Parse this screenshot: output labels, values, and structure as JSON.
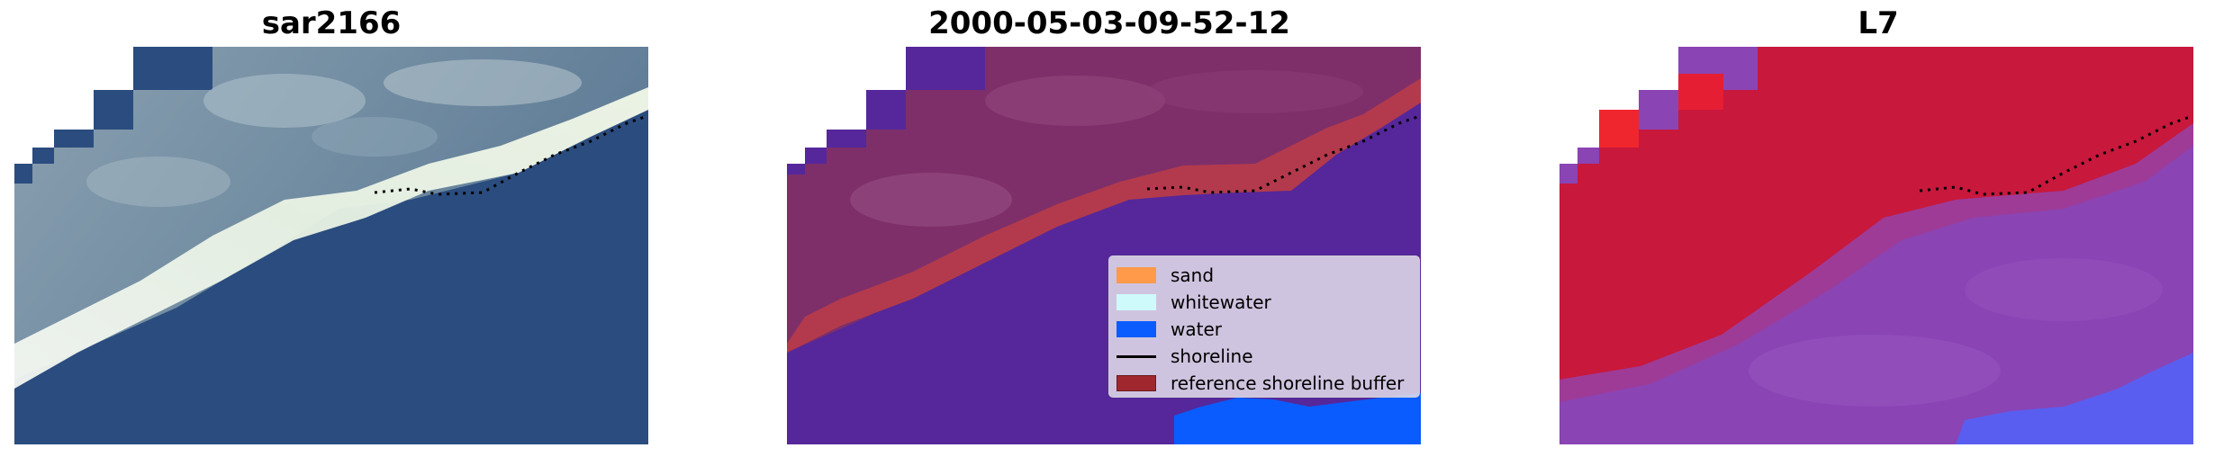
{
  "panels": [
    {
      "title": "sar2166",
      "image": "satellite RGB coastline"
    },
    {
      "title": "2000-05-03-09-52-12",
      "image": "classified overlay"
    },
    {
      "title": "L7",
      "image": "false-color index"
    }
  ],
  "legend": {
    "items": [
      {
        "label": "sand",
        "kind": "patch",
        "color": "#ff9a4a"
      },
      {
        "label": "whitewater",
        "kind": "patch",
        "color": "#cffafc"
      },
      {
        "label": "water",
        "kind": "patch",
        "color": "#0a5cff"
      },
      {
        "label": "shoreline",
        "kind": "line",
        "color": "#000000"
      },
      {
        "label": "reference shoreline buffer",
        "kind": "patch",
        "color": "#a0272e"
      }
    ]
  },
  "colors": {
    "ocean_blue": "#2b4c7e",
    "cloud_white": "#c9d6d4",
    "land_maroon": "#7e2f6a",
    "buffer_red": "#b33a4c",
    "sea_purple": "#55279a",
    "water_blue": "#0a5cff",
    "index_red": "#c8183c",
    "index_purple": "#8a44b4"
  }
}
